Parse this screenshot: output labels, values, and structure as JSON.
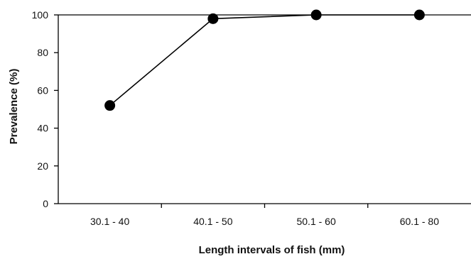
{
  "chart_data": {
    "type": "line",
    "categories": [
      "30.1 - 40",
      "40.1 - 50",
      "50.1 - 60",
      "60.1 - 80"
    ],
    "values": [
      52,
      98,
      100,
      100
    ],
    "xlabel": "Length intervals of fish  (mm)",
    "ylabel": "Prevalence (%)",
    "ylim": [
      0,
      100
    ],
    "yticks": [
      0,
      20,
      40,
      60,
      80,
      100
    ],
    "grid": false,
    "legend": "none"
  }
}
